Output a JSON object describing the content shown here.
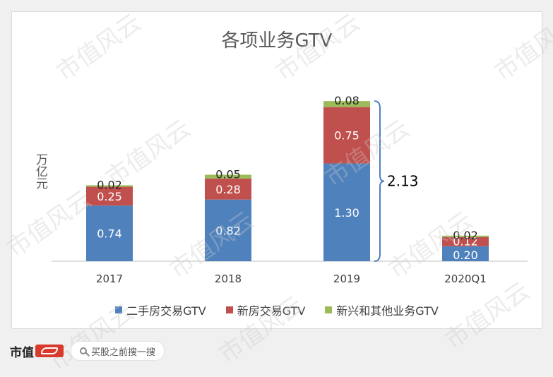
{
  "watermark_text": "市值风云",
  "colors": {
    "blue": "#4f81bd",
    "red": "#c0504d",
    "green": "#9bbb59",
    "bracket": "#4f81bd"
  },
  "footer": {
    "brand": "市值",
    "search_placeholder": "买股之前搜一搜"
  },
  "chart_data": {
    "type": "bar",
    "stacked": true,
    "title": "各项业务GTV",
    "ylabel": "万亿元",
    "xlabel": "",
    "categories": [
      "2017",
      "2018",
      "2019",
      "2020Q1"
    ],
    "series": [
      {
        "name": "二手房交易GTV",
        "values": [
          0.74,
          0.82,
          1.3,
          0.2
        ],
        "labels": [
          "0.74",
          "0.82",
          "1.30",
          "0.20"
        ],
        "color": "#4f81bd"
      },
      {
        "name": "新房交易GTV",
        "values": [
          0.25,
          0.28,
          0.75,
          0.12
        ],
        "labels": [
          "0.25",
          "0.28",
          "0.75",
          "0.12"
        ],
        "color": "#c0504d"
      },
      {
        "name": "新兴和其他业务GTV",
        "values": [
          0.02,
          0.05,
          0.08,
          0.02
        ],
        "labels": [
          "0.02",
          "0.05",
          "0.08",
          "0.02"
        ],
        "color": "#9bbb59"
      }
    ],
    "annotation": {
      "category": "2019",
      "text": "2.13"
    },
    "ylim": [
      0,
      2.2
    ],
    "grid": false,
    "legend_position": "bottom"
  }
}
